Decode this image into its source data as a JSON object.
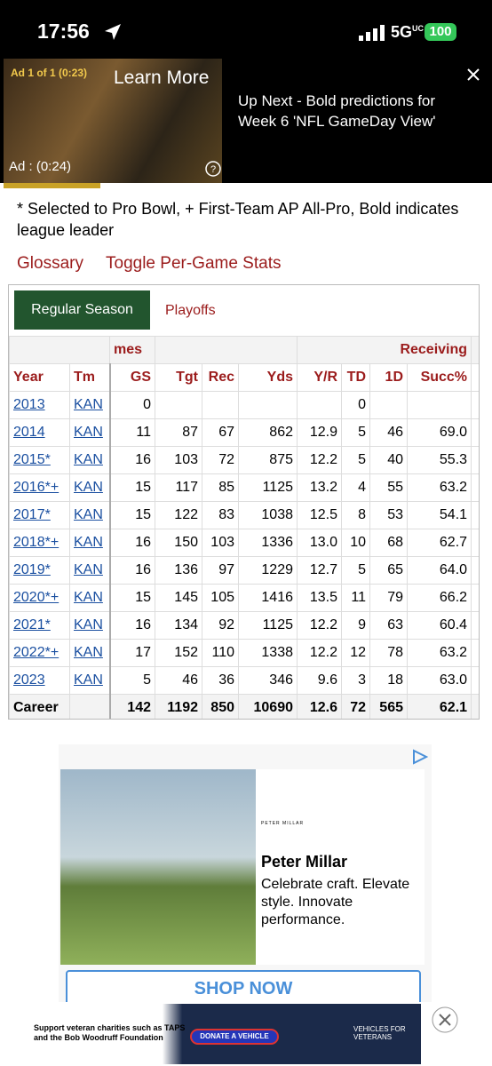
{
  "status_bar": {
    "time": "17:56",
    "network": "5G",
    "network_sup": "UC",
    "battery": "100"
  },
  "video_ad": {
    "ad_label": "Ad 1 of 1 (0:23)",
    "learn_more": "Learn More",
    "ad_timer": "Ad : (0:24)",
    "up_next": "Up Next - Bold predictions for Week 6 'NFL GameDay View'"
  },
  "note": "* Selected to Pro Bowl, + First-Team AP All-Pro, Bold indicates league leader",
  "links": [
    "Glossary",
    "Toggle Per-Game Stats"
  ],
  "tabs": [
    "Regular Season",
    "Playoffs"
  ],
  "table": {
    "groups": [
      "mes",
      "Receiving"
    ],
    "columns": [
      "Year",
      "Tm",
      "GS",
      "Tgt",
      "Rec",
      "Yds",
      "Y/R",
      "TD",
      "1D",
      "Succ%"
    ],
    "rows": [
      [
        "2013",
        "KAN",
        "0",
        null,
        null,
        null,
        null,
        "0",
        null,
        null
      ],
      [
        "2014",
        "KAN",
        "11",
        "87",
        "67",
        "862",
        "12.9",
        "5",
        "46",
        "69.0"
      ],
      [
        "2015*",
        "KAN",
        "16",
        "103",
        "72",
        "875",
        "12.2",
        "5",
        "40",
        "55.3"
      ],
      [
        "2016*+",
        "KAN",
        "15",
        "117",
        "85",
        "1125",
        "13.2",
        "4",
        "55",
        "63.2"
      ],
      [
        "2017*",
        "KAN",
        "15",
        "122",
        "83",
        "1038",
        "12.5",
        "8",
        "53",
        "54.1"
      ],
      [
        "2018*+",
        "KAN",
        "16",
        "150",
        "103",
        "1336",
        "13.0",
        "10",
        "68",
        "62.7"
      ],
      [
        "2019*",
        "KAN",
        "16",
        "136",
        "97",
        "1229",
        "12.7",
        "5",
        "65",
        "64.0"
      ],
      [
        "2020*+",
        "KAN",
        "15",
        "145",
        "105",
        "1416",
        "13.5",
        "11",
        "79",
        "66.2"
      ],
      [
        "2021*",
        "KAN",
        "16",
        "134",
        "92",
        "1125",
        "12.2",
        "9",
        "63",
        "60.4"
      ],
      [
        "2022*+",
        "KAN",
        "17",
        "152",
        "110",
        "1338",
        "12.2",
        "12",
        "78",
        "63.2"
      ],
      [
        "2023",
        "KAN",
        "5",
        "46",
        "36",
        "346",
        "9.6",
        "3",
        "18",
        "63.0"
      ]
    ],
    "footer": [
      "Career",
      null,
      "142",
      "1192",
      "850",
      "10690",
      "12.6",
      "72",
      "565",
      "62.1"
    ]
  },
  "display_ad": {
    "logo": "PETER MILLAR",
    "brand": "Peter Millar",
    "copy": "Celebrate craft. Elevate style. Innovate performance.",
    "cta": "SHOP NOW"
  },
  "banner_ad": {
    "text": "Support veteran charities such as TAPS and the Bob Woodruff Foundation",
    "button": "DONATE A VEHICLE",
    "logo": "VEHICLES FOR VETERANS"
  }
}
